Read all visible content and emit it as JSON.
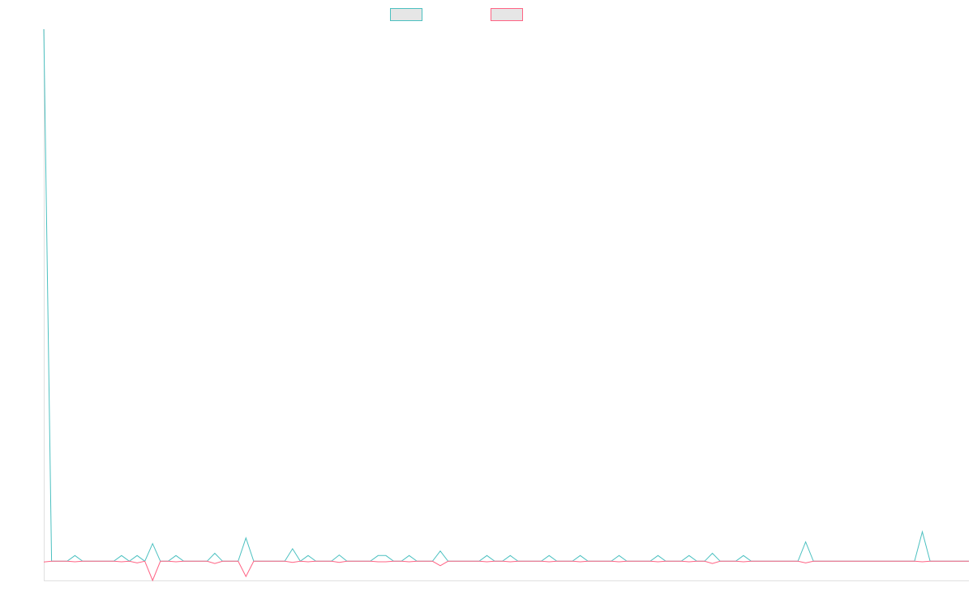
{
  "chart_data": {
    "type": "line",
    "title": "",
    "xlabel": "",
    "ylabel": "",
    "n_points": 120,
    "xlim": [
      0,
      119
    ],
    "ylim": [
      -3.4,
      94
    ],
    "grid": false,
    "legend_placement": "top-center",
    "series": [
      {
        "name": "",
        "color": "#4bc0c0",
        "nonzero_values": [
          [
            0,
            94
          ],
          [
            4,
            1
          ],
          [
            10,
            1
          ],
          [
            12,
            1
          ],
          [
            14,
            3.1
          ],
          [
            17,
            1
          ],
          [
            22,
            1.4
          ],
          [
            26,
            4.1
          ],
          [
            32,
            2.2
          ],
          [
            34,
            1
          ],
          [
            38,
            1.1
          ],
          [
            43,
            1
          ],
          [
            44,
            1
          ],
          [
            47,
            1
          ],
          [
            51,
            1.8
          ],
          [
            57,
            1
          ],
          [
            60,
            1
          ],
          [
            65,
            1
          ],
          [
            69,
            1
          ],
          [
            74,
            1
          ],
          [
            79,
            1
          ],
          [
            83,
            1
          ],
          [
            86,
            1.4
          ],
          [
            90,
            1
          ],
          [
            98,
            3.4
          ],
          [
            113,
            5.2
          ]
        ]
      },
      {
        "name": "",
        "color": "#ff6384",
        "nonzero_values": [
          [
            0,
            -0.15
          ],
          [
            4,
            -0.1
          ],
          [
            10,
            -0.1
          ],
          [
            12,
            -0.3
          ],
          [
            14,
            -3.4
          ],
          [
            17,
            -0.1
          ],
          [
            22,
            -0.4
          ],
          [
            26,
            -2.7
          ],
          [
            32,
            -0.2
          ],
          [
            34,
            -0.1
          ],
          [
            38,
            -0.2
          ],
          [
            43,
            -0.1
          ],
          [
            44,
            -0.1
          ],
          [
            47,
            -0.1
          ],
          [
            51,
            -0.8
          ],
          [
            57,
            -0.1
          ],
          [
            60,
            -0.1
          ],
          [
            65,
            -0.1
          ],
          [
            69,
            -0.1
          ],
          [
            74,
            -0.1
          ],
          [
            79,
            -0.1
          ],
          [
            83,
            -0.1
          ],
          [
            86,
            -0.4
          ],
          [
            90,
            -0.1
          ],
          [
            98,
            -0.3
          ],
          [
            113,
            -0.1
          ]
        ]
      }
    ]
  }
}
